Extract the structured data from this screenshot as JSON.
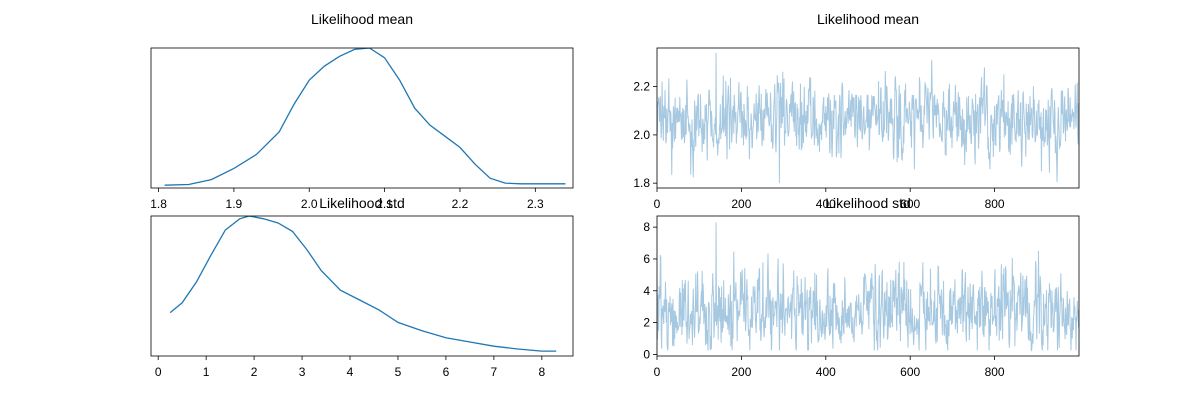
{
  "colors": {
    "density": "#1f77b4",
    "trace": "#a6c8e0",
    "axes": "#000000",
    "background": "#ffffff"
  },
  "chart_data": [
    {
      "type": "line",
      "panel": "kde",
      "title": "Likelihood mean",
      "xlim": [
        1.79,
        2.35
      ],
      "ylim": [
        0,
        1
      ],
      "x_ticks": [
        1.8,
        1.9,
        2.0,
        2.1,
        2.2,
        2.3
      ],
      "x_tick_labels": [
        "1.8",
        "1.9",
        "2.0",
        "2.1",
        "2.2",
        "2.3"
      ],
      "y_ticks": [],
      "series": [
        {
          "x": [
            1.808,
            1.84,
            1.87,
            1.9,
            1.93,
            1.96,
            1.98,
            2.0,
            2.02,
            2.04,
            2.06,
            2.08,
            2.1,
            2.12,
            2.14,
            2.16,
            2.18,
            2.2,
            2.22,
            2.24,
            2.26,
            2.28,
            2.3,
            2.34
          ],
          "y": [
            0.02,
            0.025,
            0.06,
            0.14,
            0.24,
            0.4,
            0.6,
            0.77,
            0.87,
            0.94,
            0.99,
            1.0,
            0.93,
            0.77,
            0.57,
            0.45,
            0.37,
            0.29,
            0.17,
            0.07,
            0.035,
            0.03,
            0.03,
            0.03
          ]
        }
      ]
    },
    {
      "type": "line",
      "panel": "trace",
      "title": "Likelihood mean",
      "xlim": [
        0,
        1000
      ],
      "ylim": [
        1.78,
        2.36
      ],
      "x_ticks": [
        0,
        200,
        400,
        600,
        800
      ],
      "x_tick_labels": [
        "0",
        "200",
        "400",
        "600",
        "800"
      ],
      "y_ticks": [
        1.8,
        2.0,
        2.2
      ],
      "y_tick_labels": [
        "1.8",
        "2.0",
        "2.2"
      ],
      "trace": {
        "n": 1000,
        "center": 2.06,
        "spread": 0.075,
        "max": 2.34,
        "min": 1.8
      }
    },
    {
      "type": "line",
      "panel": "kde",
      "title": "Likelihood std",
      "xlim": [
        -0.15,
        8.65
      ],
      "ylim": [
        0,
        1
      ],
      "x_ticks": [
        0,
        1,
        2,
        3,
        4,
        5,
        6,
        7,
        8
      ],
      "x_tick_labels": [
        "0",
        "1",
        "2",
        "3",
        "4",
        "5",
        "6",
        "7",
        "8"
      ],
      "y_ticks": [],
      "series": [
        {
          "x": [
            0.25,
            0.5,
            0.8,
            1.1,
            1.4,
            1.7,
            1.9,
            2.2,
            2.5,
            2.8,
            3.1,
            3.4,
            3.8,
            4.2,
            4.6,
            5.0,
            5.5,
            6.0,
            6.5,
            7.0,
            7.5,
            8.0,
            8.3
          ],
          "y": [
            0.31,
            0.38,
            0.53,
            0.72,
            0.9,
            0.98,
            1.0,
            0.98,
            0.95,
            0.89,
            0.76,
            0.61,
            0.47,
            0.4,
            0.33,
            0.24,
            0.18,
            0.13,
            0.1,
            0.07,
            0.05,
            0.035,
            0.035
          ]
        }
      ]
    },
    {
      "type": "line",
      "panel": "trace",
      "title": "Likelihood std",
      "xlim": [
        0,
        1000
      ],
      "ylim": [
        -0.1,
        8.7
      ],
      "x_ticks": [
        0,
        200,
        400,
        600,
        800
      ],
      "x_tick_labels": [
        "0",
        "200",
        "400",
        "600",
        "800"
      ],
      "y_ticks": [
        0,
        2,
        4,
        6,
        8
      ],
      "y_tick_labels": [
        "0",
        "2",
        "4",
        "6",
        "8"
      ],
      "trace": {
        "n": 1000,
        "center": 2.6,
        "spread": 1.3,
        "max": 8.3,
        "min": 0.25
      }
    }
  ]
}
